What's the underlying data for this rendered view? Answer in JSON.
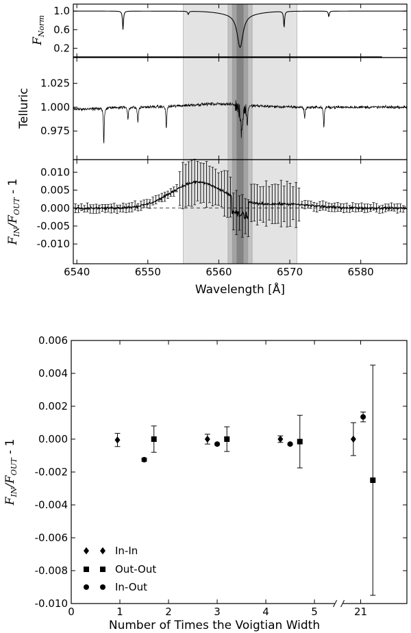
{
  "chart_data": [
    {
      "type": "line",
      "panel": "normalized-flux",
      "ylabel": "F",
      "ylabel_sub": "Norm",
      "xlim": [
        6539.5,
        6586.5
      ],
      "ylim": [
        0.0,
        1.15
      ],
      "yticks": [
        "1.0",
        "0.6",
        "0.2"
      ],
      "ytick_values": [
        1.0,
        0.6,
        0.2
      ],
      "lines": [
        {
          "center": 6546.5,
          "depth": 0.4,
          "width": 0.08
        },
        {
          "center": 6555.7,
          "depth": 0.07,
          "width": 0.1
        },
        {
          "center": 6563.0,
          "depth": 0.72,
          "width": 0.5
        },
        {
          "center": 6569.2,
          "depth": 0.35,
          "width": 0.08
        },
        {
          "center": 6575.5,
          "depth": 0.12,
          "width": 0.08
        }
      ]
    },
    {
      "type": "line",
      "panel": "telluric",
      "ylabel": "Telluric",
      "xlim": [
        6539.5,
        6586.5
      ],
      "ylim": [
        0.945,
        1.052
      ],
      "yticks": [
        "1.025",
        "1.000",
        "0.975"
      ],
      "ytick_values": [
        1.025,
        1.0,
        0.975
      ],
      "lines": [
        {
          "center": 6543.8,
          "depth": 0.04,
          "width": 0.06
        },
        {
          "center": 6547.2,
          "depth": 0.013,
          "width": 0.07
        },
        {
          "center": 6548.6,
          "depth": 0.017,
          "width": 0.07
        },
        {
          "center": 6552.6,
          "depth": 0.025,
          "width": 0.06
        },
        {
          "center": 6563.2,
          "depth": 0.03,
          "width": 0.15
        },
        {
          "center": 6564.0,
          "depth": 0.02,
          "width": 0.08
        },
        {
          "center": 6572.1,
          "depth": 0.012,
          "width": 0.07
        },
        {
          "center": 6574.8,
          "depth": 0.023,
          "width": 0.06
        }
      ]
    },
    {
      "type": "line",
      "panel": "transmission-ratio",
      "ylabel": "F",
      "ylabel_sub1": "IN",
      "ylabel_mid": "/F",
      "ylabel_sub2": "OUT",
      "ylabel_tail": " - 1",
      "xlabel": "Wavelength [Å]",
      "xlim": [
        6539.5,
        6586.5
      ],
      "ylim": [
        -0.0155,
        0.0135
      ],
      "xticks": [
        "6540",
        "6550",
        "6560",
        "6570",
        "6580"
      ],
      "xtick_values": [
        6540,
        6550,
        6560,
        6570,
        6580
      ],
      "yticks": [
        "0.010",
        "0.005",
        "0.000",
        "-0.005",
        "-0.010"
      ],
      "ytick_values": [
        0.01,
        0.005,
        0.0,
        -0.005,
        -0.01
      ],
      "bands": [
        {
          "x0": 6555.0,
          "x1": 6571.0,
          "shade": "#e3e3e3"
        },
        {
          "x0": 6561.3,
          "x1": 6564.7,
          "shade": "#c2c2c2"
        },
        {
          "x0": 6561.9,
          "x1": 6564.1,
          "shade": "#a3a3a3"
        },
        {
          "x0": 6562.5,
          "x1": 6563.5,
          "shade": "#838383"
        }
      ]
    },
    {
      "type": "scatter",
      "panel": "voigtian-width",
      "xlabel": "Number of Times the Voigtian Width",
      "ylabel": "F",
      "ylabel_sub1": "IN",
      "ylabel_mid": "/F",
      "ylabel_sub2": "OUT",
      "ylabel_tail": " - 1",
      "xlim": [
        0,
        6.9
      ],
      "ylim": [
        -0.01,
        0.006
      ],
      "xticks": [
        "0",
        "1",
        "2",
        "3",
        "4",
        "5",
        "21"
      ],
      "xtick_values": [
        0,
        1,
        2,
        3,
        4,
        5,
        5.95
      ],
      "yticks": [
        "0.006",
        "0.004",
        "0.002",
        "0.000",
        "-0.002",
        "-0.004",
        "-0.006",
        "-0.008",
        "-0.010"
      ],
      "ytick_values": [
        0.006,
        0.004,
        0.002,
        0.0,
        -0.002,
        -0.004,
        -0.006,
        -0.008,
        -0.01
      ],
      "axis_break": 5.5,
      "legend_position": "lower-left",
      "series": [
        {
          "name": "In-In",
          "marker": "diamond",
          "points": [
            {
              "x": 0.95,
              "y": -5e-05,
              "err": 0.0004
            },
            {
              "x": 2.8,
              "y": 0.0,
              "err": 0.0003
            },
            {
              "x": 4.3,
              "y": 0.0,
              "err": 0.0002
            },
            {
              "x": 5.8,
              "y": 0.0,
              "err": 0.001
            }
          ]
        },
        {
          "name": "Out-Out",
          "marker": "square",
          "points": [
            {
              "x": 1.7,
              "y": 0.0,
              "err": 0.0008
            },
            {
              "x": 3.2,
              "y": 0.0,
              "err": 0.00075
            },
            {
              "x": 4.7,
              "y": -0.00015,
              "err": 0.0016
            },
            {
              "x": 6.2,
              "y": -0.0025,
              "err": 0.007
            }
          ]
        },
        {
          "name": "In-Out",
          "marker": "circle",
          "points": [
            {
              "x": 1.5,
              "y": -0.00125,
              "err": 0.0001
            },
            {
              "x": 3.0,
              "y": -0.0003,
              "err": 5e-05
            },
            {
              "x": 4.5,
              "y": -0.0003,
              "err": 5e-05
            },
            {
              "x": 6.0,
              "y": 0.00135,
              "err": 0.0003
            }
          ]
        }
      ]
    }
  ]
}
